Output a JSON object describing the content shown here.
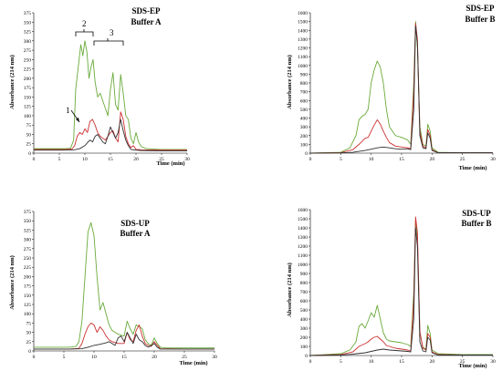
{
  "chart_data": [
    {
      "type": "line",
      "title": "SDS-EP",
      "subtitle": "Buffer A",
      "xlabel": "Time (min)",
      "ylabel": "Absorbance (214 nm)",
      "xlim": [
        0,
        30
      ],
      "ylim": [
        0,
        375
      ],
      "xticks": [
        0,
        5,
        10,
        15,
        20,
        25,
        30
      ],
      "yticks": [
        0,
        25,
        50,
        75,
        100,
        125,
        150,
        175,
        200,
        225,
        250,
        275,
        300,
        325,
        350,
        375
      ],
      "grid": false,
      "legend": "none",
      "annotations": [
        "1",
        "2",
        "3"
      ],
      "series": [
        {
          "color": "#6aaa3a",
          "x": [
            0,
            6,
            7.2,
            7.8,
            8.2,
            8.7,
            9.2,
            9.6,
            10,
            10.4,
            10.8,
            11.2,
            11.6,
            12,
            12.5,
            13,
            13.5,
            14,
            14.5,
            15,
            15.5,
            16,
            16.5,
            17,
            17.5,
            18,
            18.5,
            19,
            19.5,
            20,
            20.5,
            21,
            22,
            25,
            30
          ],
          "y": [
            12,
            12,
            13,
            35,
            170,
            230,
            290,
            260,
            300,
            270,
            200,
            230,
            250,
            190,
            150,
            160,
            140,
            120,
            100,
            170,
            215,
            130,
            115,
            210,
            160,
            100,
            90,
            40,
            25,
            55,
            30,
            18,
            12,
            10,
            10
          ]
        },
        {
          "color": "#cc3030",
          "x": [
            0,
            6,
            7.5,
            8,
            8.5,
            9,
            9.5,
            10,
            10.5,
            11,
            11.5,
            12,
            12.5,
            13,
            13.5,
            14,
            14.5,
            15,
            15.5,
            16,
            16.5,
            17,
            17.5,
            18,
            18.5,
            19,
            19.5,
            20,
            21,
            25,
            30
          ],
          "y": [
            10,
            10,
            11,
            20,
            45,
            55,
            50,
            65,
            55,
            85,
            90,
            75,
            55,
            45,
            40,
            35,
            45,
            55,
            60,
            40,
            30,
            110,
            90,
            45,
            25,
            15,
            20,
            10,
            9,
            8,
            8
          ]
        },
        {
          "color": "#303030",
          "x": [
            0,
            6,
            8,
            9,
            10,
            10.5,
            11,
            11.5,
            12,
            12.5,
            13,
            13.5,
            14,
            14.5,
            15,
            15.5,
            16,
            16.5,
            17,
            17.5,
            18,
            18.5,
            19,
            20,
            21,
            25,
            30
          ],
          "y": [
            8,
            8,
            9,
            12,
            20,
            28,
            35,
            30,
            45,
            50,
            40,
            30,
            25,
            45,
            70,
            55,
            40,
            55,
            90,
            60,
            35,
            20,
            10,
            8,
            7,
            6,
            6
          ]
        }
      ]
    },
    {
      "type": "line",
      "title": "SDS-EP",
      "subtitle": "Buffer B",
      "xlabel": "Time (min)",
      "ylabel": "Absorbance (214 nm)",
      "xlim": [
        0,
        30
      ],
      "ylim": [
        0,
        1600
      ],
      "xticks": [
        0,
        5,
        10,
        15,
        20,
        25,
        30
      ],
      "yticks": [
        0,
        100,
        200,
        300,
        400,
        500,
        600,
        700,
        800,
        900,
        1000,
        1100,
        1200,
        1300,
        1400,
        1500,
        1600
      ],
      "grid": false,
      "legend": "none",
      "series": [
        {
          "color": "#6aaa3a",
          "x": [
            0,
            5,
            6.5,
            7.5,
            8,
            8.5,
            9,
            9.5,
            10,
            10.5,
            11,
            11.5,
            12,
            12.5,
            13,
            14,
            15,
            16,
            16.5,
            17,
            17.3,
            17.6,
            18,
            18.5,
            19,
            19.3,
            19.7,
            20,
            21,
            25,
            30
          ],
          "y": [
            0,
            10,
            60,
            200,
            380,
            420,
            440,
            500,
            800,
            950,
            1050,
            980,
            800,
            500,
            300,
            200,
            180,
            150,
            100,
            800,
            1500,
            1200,
            300,
            100,
            80,
            330,
            250,
            60,
            10,
            5,
            5
          ]
        },
        {
          "color": "#cc3030",
          "x": [
            0,
            5,
            7,
            8,
            9,
            9.5,
            10,
            10.5,
            11,
            11.5,
            12,
            12.5,
            13,
            14,
            15,
            16,
            16.5,
            17,
            17.3,
            17.6,
            18,
            18.5,
            19,
            19.3,
            19.7,
            20,
            21,
            25,
            30
          ],
          "y": [
            0,
            5,
            40,
            100,
            170,
            180,
            250,
            320,
            380,
            330,
            250,
            180,
            120,
            80,
            70,
            60,
            50,
            700,
            1480,
            1300,
            250,
            80,
            60,
            270,
            200,
            40,
            5,
            5,
            5
          ]
        },
        {
          "color": "#303030",
          "x": [
            0,
            5,
            7,
            9,
            10,
            11,
            12,
            13,
            14,
            15,
            16,
            16.5,
            17,
            17.3,
            17.6,
            18,
            18.5,
            19,
            19.3,
            19.7,
            20,
            21,
            25,
            30
          ],
          "y": [
            0,
            3,
            10,
            30,
            45,
            60,
            70,
            60,
            50,
            45,
            50,
            40,
            500,
            1450,
            1250,
            200,
            60,
            50,
            230,
            170,
            30,
            5,
            5,
            5
          ]
        }
      ]
    },
    {
      "type": "line",
      "title": "SDS-UP",
      "subtitle": "Buffer A",
      "xlabel": "Time (min)",
      "ylabel": "Absorbance (214 nm)",
      "xlim": [
        0,
        30
      ],
      "ylim": [
        0,
        375
      ],
      "xticks": [
        0,
        5,
        10,
        15,
        20,
        25,
        30
      ],
      "yticks": [
        0,
        25,
        50,
        75,
        100,
        125,
        150,
        175,
        200,
        225,
        250,
        275,
        300,
        325,
        350,
        375
      ],
      "grid": false,
      "legend": "none",
      "series": [
        {
          "color": "#6aaa3a",
          "x": [
            0,
            6,
            7,
            7.5,
            8,
            8.5,
            9,
            9.5,
            10,
            10.5,
            11,
            11.5,
            12,
            12.5,
            13,
            14,
            15,
            15.5,
            16,
            16.5,
            17,
            17.5,
            18,
            18.5,
            19,
            19.5,
            20,
            20.5,
            21,
            22,
            25,
            30
          ],
          "y": [
            10,
            10,
            12,
            25,
            80,
            200,
            320,
            345,
            310,
            200,
            110,
            130,
            100,
            70,
            55,
            45,
            40,
            80,
            60,
            45,
            70,
            65,
            60,
            30,
            20,
            15,
            35,
            20,
            10,
            8,
            8,
            8
          ]
        },
        {
          "color": "#cc3030",
          "x": [
            0,
            6,
            7.5,
            8,
            8.5,
            9,
            9.5,
            10,
            10.5,
            11,
            11.5,
            12,
            12.5,
            13,
            14,
            15,
            15.5,
            16,
            16.5,
            17,
            17.5,
            18,
            18.5,
            19,
            19.5,
            20,
            20.5,
            21,
            25,
            30
          ],
          "y": [
            5,
            5,
            7,
            20,
            45,
            65,
            75,
            70,
            50,
            65,
            55,
            40,
            30,
            25,
            20,
            20,
            50,
            30,
            25,
            55,
            70,
            40,
            20,
            15,
            12,
            25,
            15,
            6,
            5,
            5
          ]
        },
        {
          "color": "#303030",
          "x": [
            0,
            6,
            8,
            9,
            10,
            11,
            12,
            12.5,
            13,
            13.5,
            14,
            14.5,
            15,
            15.5,
            16,
            16.5,
            17,
            17.5,
            18,
            18.5,
            19,
            20,
            20.5,
            21,
            25,
            30
          ],
          "y": [
            5,
            5,
            6,
            10,
            15,
            18,
            22,
            25,
            20,
            15,
            35,
            40,
            25,
            50,
            35,
            20,
            45,
            30,
            25,
            15,
            10,
            20,
            10,
            5,
            5,
            5
          ]
        }
      ]
    },
    {
      "type": "line",
      "title": "SDS-UP",
      "subtitle": "Buffer B",
      "xlabel": "Time (min)",
      "ylabel": "Absorbance (214 nm)",
      "xlim": [
        0,
        30
      ],
      "ylim": [
        0,
        1600
      ],
      "xticks": [
        0,
        5,
        10,
        15,
        20,
        25,
        30
      ],
      "yticks": [
        0,
        100,
        200,
        300,
        400,
        500,
        600,
        700,
        800,
        900,
        1000,
        1100,
        1200,
        1300,
        1400,
        1500,
        1600
      ],
      "grid": false,
      "legend": "none",
      "series": [
        {
          "color": "#6aaa3a",
          "x": [
            0,
            5,
            6.5,
            7.5,
            8,
            8.5,
            9,
            9.5,
            10,
            10.5,
            11,
            11.5,
            12,
            12.5,
            13,
            14,
            15,
            16,
            16.5,
            17,
            17.3,
            17.6,
            18,
            18.5,
            19,
            19.3,
            19.7,
            20,
            21,
            25,
            30
          ],
          "y": [
            0,
            20,
            60,
            150,
            320,
            350,
            300,
            380,
            470,
            420,
            550,
            400,
            250,
            180,
            160,
            150,
            140,
            120,
            100,
            700,
            1480,
            1300,
            250,
            90,
            70,
            330,
            240,
            60,
            20,
            10,
            10
          ]
        },
        {
          "color": "#cc3030",
          "x": [
            0,
            5,
            7,
            8,
            9,
            9.5,
            10,
            10.5,
            11,
            11.5,
            12,
            12.5,
            13,
            14,
            15,
            16,
            16.5,
            17,
            17.3,
            17.6,
            18,
            18.5,
            19,
            19.3,
            19.7,
            20,
            21,
            25,
            30
          ],
          "y": [
            0,
            10,
            40,
            100,
            130,
            150,
            180,
            200,
            210,
            180,
            150,
            110,
            100,
            80,
            70,
            60,
            50,
            600,
            1520,
            1350,
            260,
            80,
            60,
            240,
            200,
            40,
            10,
            5,
            5
          ]
        },
        {
          "color": "#303030",
          "x": [
            0,
            5,
            7,
            9,
            10,
            11,
            12,
            13,
            14,
            15,
            16,
            16.5,
            17,
            17.3,
            17.6,
            18,
            18.5,
            19,
            19.3,
            19.7,
            20,
            21,
            25,
            30
          ],
          "y": [
            0,
            5,
            15,
            30,
            45,
            60,
            70,
            60,
            55,
            50,
            45,
            40,
            400,
            1400,
            1200,
            150,
            50,
            40,
            200,
            170,
            30,
            5,
            5,
            5
          ]
        }
      ]
    }
  ]
}
